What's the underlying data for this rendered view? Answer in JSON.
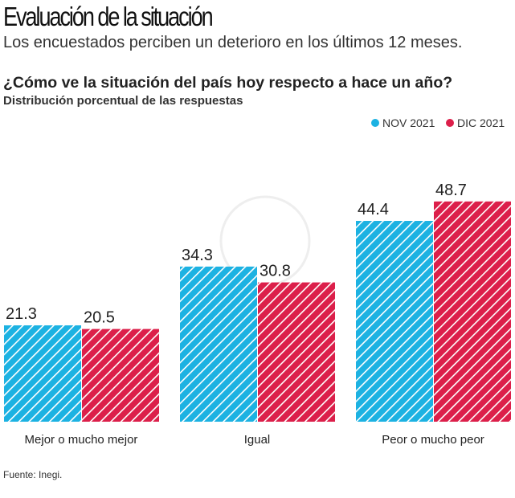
{
  "header": {
    "title": "Evaluación de la situación",
    "subtitle": "Los encuestados perciben un deterioro en los últimos 12 meses."
  },
  "source": "Fuente: Inegi.",
  "chart_data": {
    "type": "bar",
    "title": "¿Cómo ve la situación del país hoy respecto a hace un año?",
    "subtitle": "Distribución porcentual de las respuestas",
    "categories": [
      "Mejor o mucho mejor",
      "Igual",
      "Peor o mucho peor"
    ],
    "series": [
      {
        "name": "NOV 2021",
        "color": "#1cb2e2",
        "values": [
          21.3,
          34.3,
          44.4
        ]
      },
      {
        "name": "DIC 2021",
        "color": "#dc1f4a",
        "values": [
          20.5,
          30.8,
          48.7
        ]
      }
    ],
    "legend_position": "top-right",
    "grid": false,
    "pattern": "diagonal-hatch",
    "ylim": [
      0,
      50
    ]
  }
}
